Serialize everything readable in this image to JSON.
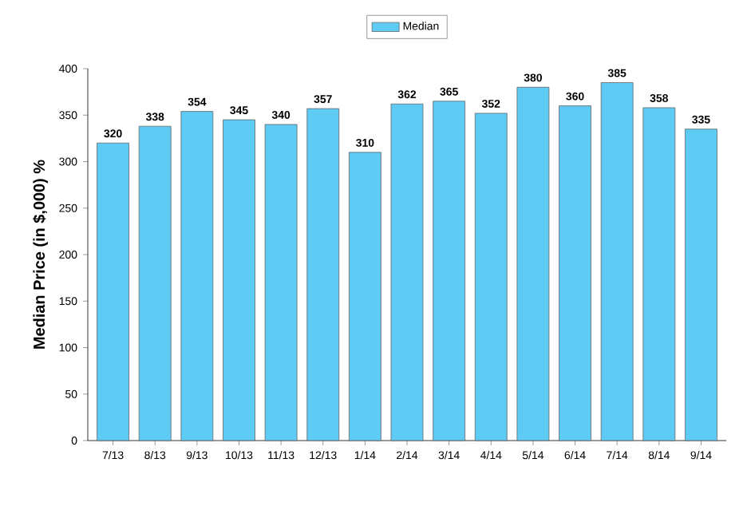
{
  "chart_data": {
    "type": "bar",
    "ylabel": "Median Price (in $,000) %",
    "categories": [
      "7/13",
      "8/13",
      "9/13",
      "10/13",
      "11/13",
      "12/13",
      "1/14",
      "2/14",
      "3/14",
      "4/14",
      "5/14",
      "6/14",
      "7/14",
      "8/14",
      "9/14"
    ],
    "series": [
      {
        "name": "Median",
        "color": "#5ecbf5",
        "values": [
          320,
          338,
          354,
          345,
          340,
          357,
          310,
          362,
          365,
          352,
          380,
          360,
          385,
          358,
          335
        ]
      }
    ],
    "ylim": [
      0,
      400
    ],
    "yticks": [
      0,
      50,
      100,
      150,
      200,
      250,
      300,
      350,
      400
    ],
    "data_labels": true,
    "legend": "top",
    "grid": false
  }
}
